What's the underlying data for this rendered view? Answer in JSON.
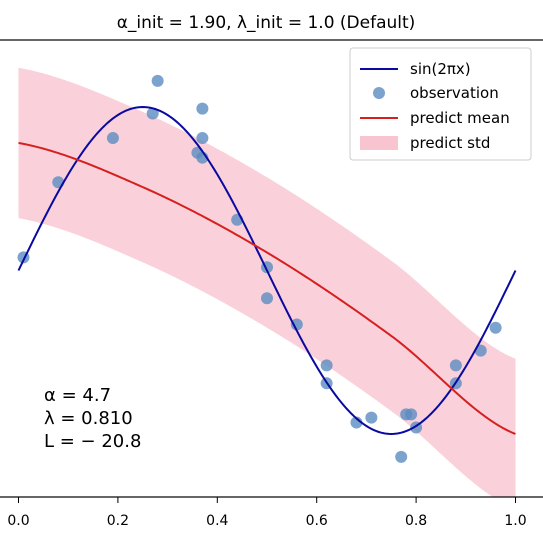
{
  "chart_data": {
    "type": "scatter",
    "title": "α_init = 1.90,  λ_init = 1.0 (Default)",
    "xlabel": "",
    "ylabel": "",
    "xlim": [
      -0.03,
      1.03
    ],
    "ylim": [
      -1.55,
      1.6
    ],
    "x_ticks": [
      "0.0",
      "0.2",
      "0.4",
      "0.6",
      "0.8",
      "1.0"
    ],
    "x_tick_values": [
      0.0,
      0.2,
      0.4,
      0.6,
      0.8,
      1.0
    ],
    "grid": false,
    "legend_position": "top-right",
    "legend": [
      {
        "label": "sin(2πx)",
        "kind": "line",
        "color": "#0a0aa0"
      },
      {
        "label": "observation",
        "kind": "point",
        "color": "#5b8cc0"
      },
      {
        "label": "predict mean",
        "kind": "line",
        "color": "#d62020"
      },
      {
        "label": "predict std",
        "kind": "band",
        "color": "#f8c4cf"
      }
    ],
    "series": [
      {
        "name": "observation",
        "kind": "scatter",
        "color": "#5b8cc0",
        "x": [
          0.01,
          0.08,
          0.19,
          0.27,
          0.28,
          0.36,
          0.37,
          0.37,
          0.37,
          0.44,
          0.5,
          0.5,
          0.56,
          0.62,
          0.62,
          0.68,
          0.71,
          0.77,
          0.78,
          0.79,
          0.8,
          0.88,
          0.88,
          0.93,
          0.96
        ],
        "y": [
          0.08,
          0.54,
          0.81,
          0.96,
          1.16,
          0.72,
          0.69,
          0.81,
          0.99,
          0.31,
          0.02,
          -0.17,
          -0.33,
          -0.58,
          -0.69,
          -0.93,
          -0.9,
          -1.14,
          -0.88,
          -0.88,
          -0.96,
          -0.69,
          -0.58,
          -0.49,
          -0.35
        ]
      }
    ],
    "true_function": "sin(2πx)",
    "predict_mean": {
      "x": [
        0,
        0.25,
        0.5,
        0.75,
        1.0
      ],
      "y": [
        0.78,
        0.51,
        0.11,
        -0.4,
        -1.0
      ]
    },
    "predict_std": 0.46,
    "annotations": [
      "α = 4.7",
      "λ = 0.810",
      "L = − 20.8"
    ]
  }
}
